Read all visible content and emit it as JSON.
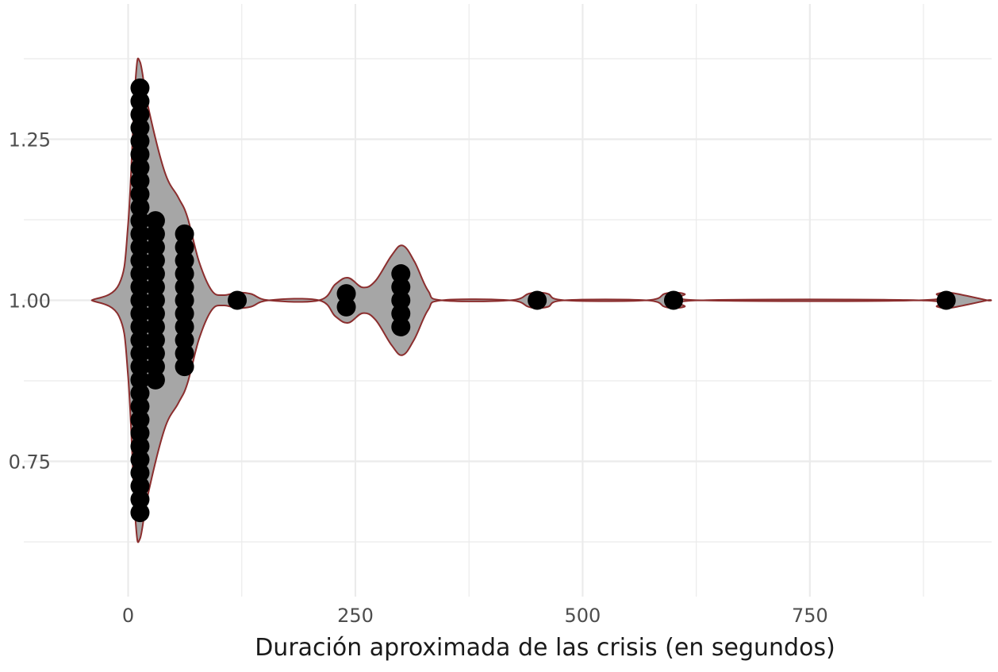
{
  "chart_data": {
    "type": "violin",
    "title": "",
    "xlabel": "Duración aproximada de las crisis (en segundos)",
    "ylabel": "",
    "xlim": [
      -45,
      950
    ],
    "ylim": [
      0.54,
      1.46
    ],
    "x_ticks": [
      0,
      250,
      500,
      750
    ],
    "x_tick_labels": [
      "0",
      "250",
      "500",
      "750"
    ],
    "y_ticks": [
      0.75,
      1.0,
      1.25
    ],
    "y_tick_labels": [
      "0.75",
      "1.00",
      "1.25"
    ],
    "grid": true,
    "legend": "none",
    "colors": {
      "violin_fill": "#a6a6a6",
      "violin_outline": "#8b2e2e",
      "dot": "#000000",
      "grid": "#ebebeb"
    },
    "violin": {
      "center": 1.0,
      "profile": [
        [
          -40,
          0.0
        ],
        [
          -10,
          0.025
        ],
        [
          0,
          0.12
        ],
        [
          8,
          0.34
        ],
        [
          13,
          0.37
        ],
        [
          22,
          0.3
        ],
        [
          40,
          0.2
        ],
        [
          55,
          0.16
        ],
        [
          65,
          0.13
        ],
        [
          78,
          0.06
        ],
        [
          92,
          0.015
        ],
        [
          105,
          0.008
        ],
        [
          120,
          0.012
        ],
        [
          135,
          0.01
        ],
        [
          155,
          0.0
        ],
        [
          210,
          0.0
        ],
        [
          228,
          0.025
        ],
        [
          242,
          0.035
        ],
        [
          258,
          0.02
        ],
        [
          272,
          0.03
        ],
        [
          290,
          0.07
        ],
        [
          302,
          0.085
        ],
        [
          315,
          0.06
        ],
        [
          330,
          0.015
        ],
        [
          345,
          0.0
        ],
        [
          420,
          0.0
        ],
        [
          440,
          0.01
        ],
        [
          450,
          0.012
        ],
        [
          462,
          0.01
        ],
        [
          480,
          0.0
        ],
        [
          570,
          0.0
        ],
        [
          590,
          0.01
        ],
        [
          600,
          0.012
        ],
        [
          612,
          0.01
        ],
        [
          630,
          0.0
        ],
        [
          870,
          0.0
        ],
        [
          890,
          0.01
        ],
        [
          900,
          0.012
        ],
        [
          912,
          0.01
        ],
        [
          945,
          0.0
        ]
      ]
    },
    "dot_columns": [
      {
        "x": 13,
        "count": 33
      },
      {
        "x": 30,
        "count": 13
      },
      {
        "x": 62,
        "count": 11
      },
      {
        "x": 120,
        "count": 1
      },
      {
        "x": 240,
        "count": 2
      },
      {
        "x": 300,
        "count": 5
      },
      {
        "x": 450,
        "count": 1
      },
      {
        "x": 600,
        "count": 1
      },
      {
        "x": 900,
        "count": 1
      }
    ],
    "dot_step": 0.0206
  }
}
